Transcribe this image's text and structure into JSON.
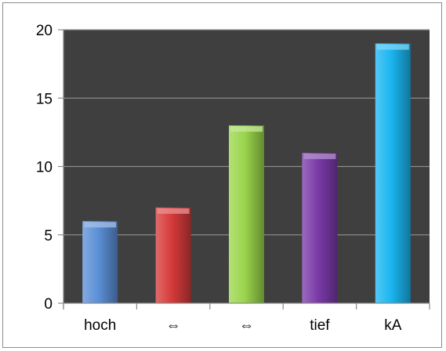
{
  "chart_data": {
    "type": "bar",
    "title": "",
    "xlabel": "",
    "ylabel": "",
    "categories": [
      "hoch",
      "⇔",
      "⇔",
      "tief",
      "kA"
    ],
    "values": [
      6,
      7,
      13,
      11,
      19
    ],
    "ylim": [
      0,
      20
    ],
    "yticks": [
      0,
      5,
      10,
      15,
      20
    ],
    "grid": true,
    "legend": "none",
    "colors": [
      "#5b8fd6",
      "#d63a3a",
      "#9ad54b",
      "#7a3aa8",
      "#1ab6f0"
    ],
    "plot_background": "#3f3f3f",
    "gridline_color": "#8a8a8a"
  }
}
